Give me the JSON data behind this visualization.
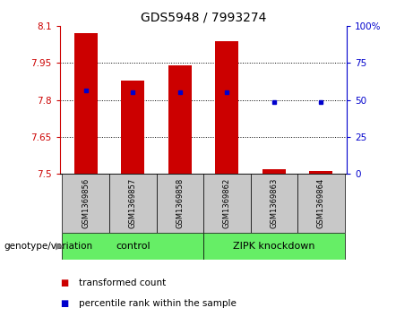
{
  "title": "GDS5948 / 7993274",
  "samples": [
    "GSM1369856",
    "GSM1369857",
    "GSM1369858",
    "GSM1369862",
    "GSM1369863",
    "GSM1369864"
  ],
  "bar_values": [
    8.07,
    7.88,
    7.94,
    8.04,
    7.52,
    7.51
  ],
  "bar_base": 7.5,
  "blue_dot_left_values": [
    7.84,
    7.83,
    7.83,
    7.83,
    7.79,
    7.79
  ],
  "ylim_left": [
    7.5,
    8.1
  ],
  "ylim_right": [
    0,
    100
  ],
  "yticks_left": [
    7.5,
    7.65,
    7.8,
    7.95,
    8.1
  ],
  "ytick_labels_left": [
    "7.5",
    "7.65",
    "7.8",
    "7.95",
    "8.1"
  ],
  "yticks_right": [
    0,
    25,
    50,
    75,
    100
  ],
  "ytick_labels_right": [
    "0",
    "25",
    "50",
    "75",
    "100%"
  ],
  "bar_color": "#cc0000",
  "dot_color": "#0000cc",
  "bg_color": "#ffffff",
  "plot_bg_color": "#ffffff",
  "left_axis_color": "#cc0000",
  "right_axis_color": "#0000cc",
  "legend_items": [
    {
      "label": "transformed count",
      "color": "#cc0000"
    },
    {
      "label": "percentile rank within the sample",
      "color": "#0000cc"
    }
  ],
  "group_label_prefix": "genotype/variation",
  "group_bg_color": "#c8c8c8",
  "green_color": "#66ee66",
  "bar_width": 0.5,
  "group_spans": [
    {
      "label": "control",
      "start": 0,
      "end": 3
    },
    {
      "label": "ZIPK knockdown",
      "start": 3,
      "end": 6
    }
  ]
}
